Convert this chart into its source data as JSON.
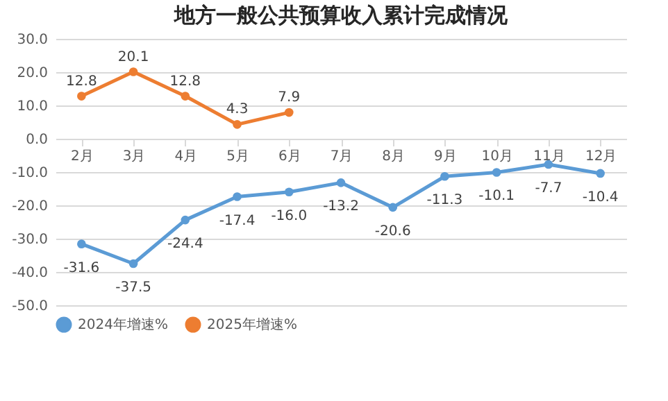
{
  "chart_data": {
    "type": "line",
    "title": "地方一般公共预算收入累计完成情况",
    "categories": [
      "2月",
      "3月",
      "4月",
      "5月",
      "6月",
      "7月",
      "8月",
      "9月",
      "10月",
      "11月",
      "12月"
    ],
    "series": [
      {
        "name": "2024年增速%",
        "color": "#5b9bd5",
        "values": [
          -31.6,
          -37.5,
          -24.4,
          -17.4,
          -16.0,
          -13.2,
          -20.6,
          -11.3,
          -10.1,
          -7.7,
          -10.4
        ],
        "value_labels": [
          "-31.6",
          "-37.5",
          "-24.4",
          "-17.4",
          "-16.0",
          "-13.2",
          "-20.6",
          "-11.3",
          "-10.1",
          "-7.7",
          "-10.4"
        ]
      },
      {
        "name": "2025年增速%",
        "color": "#ed7d31",
        "values": [
          12.8,
          20.1,
          12.8,
          4.3,
          7.9,
          null,
          null,
          null,
          null,
          null,
          null
        ],
        "value_labels": [
          "12.8",
          "20.1",
          "12.8",
          "4.3",
          "7.9",
          null,
          null,
          null,
          null,
          null,
          null
        ]
      }
    ],
    "ylim": [
      -50,
      30
    ],
    "yticks": [
      {
        "value": -50,
        "label": "-50.0"
      },
      {
        "value": -40,
        "label": "-40.0"
      },
      {
        "value": -30,
        "label": "-30.0"
      },
      {
        "value": -20,
        "label": "-20.0"
      },
      {
        "value": -10,
        "label": "-10.0"
      },
      {
        "value": 0,
        "label": "0.0"
      },
      {
        "value": 10,
        "label": "10.0"
      },
      {
        "value": 20,
        "label": "20.0"
      },
      {
        "value": 30,
        "label": "30.0"
      }
    ],
    "grid": "y",
    "legend": "bottom",
    "marker": "circle",
    "line_style": "solid"
  }
}
